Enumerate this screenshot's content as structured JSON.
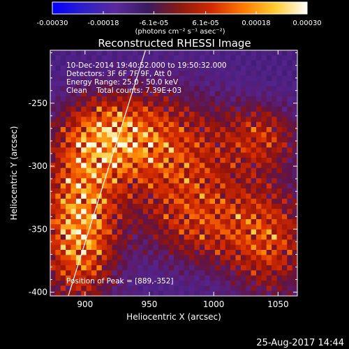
{
  "colorbar": {
    "tick_labels": [
      "-0.00030",
      "-0.00018",
      "-6.1e-05",
      "6.1e-05",
      "0.00018",
      "0.00030"
    ],
    "tick_values": [
      -0.0003,
      -0.00018,
      -6.1e-05,
      6.1e-05,
      0.00018,
      0.0003
    ],
    "range": [
      -0.0003,
      0.0003
    ],
    "unit_label": "(photons cm⁻² s⁻¹ asec⁻²)",
    "colors": [
      "#0000ff",
      "#3020c8",
      "#5a2a9a",
      "#3a1a60",
      "#8a1a10",
      "#d22a00",
      "#ff7a00",
      "#ffcc30",
      "#ffffff"
    ]
  },
  "chart_data": {
    "type": "heatmap",
    "title": "Reconstructed RHESSI Image",
    "xlabel": "Heliocentric X (arcsec)",
    "ylabel": "Heliocentric Y (arcsec)",
    "xlim": [
      873,
      1065
    ],
    "ylim": [
      -403,
      -208
    ],
    "xticks": [
      900,
      950,
      1000,
      1050
    ],
    "xtick_labels": [
      "900",
      "950",
      "1000",
      "1050"
    ],
    "yticks": [
      -400,
      -350,
      -300,
      -250
    ],
    "ytick_labels": [
      "-400",
      "-350",
      "-300",
      "-250"
    ],
    "limb_line": {
      "x": [
        887,
        947
      ],
      "y": [
        -403,
        -208
      ]
    },
    "annotations": [
      "10-Dec-2014 19:40:52.000 to 19:50:32.000",
      "Detectors: 3F 6F 7F 9F, Att 0",
      "Energy Range: 25.0 - 50.0 keV",
      "Clean    Total counts: 7.39E+03"
    ],
    "peak_label": "Position of Peak = [889,-352]",
    "peak": [
      889,
      -352
    ],
    "emission_sources": [
      {
        "x": 895,
        "y": -350,
        "sx": 22,
        "sy": 45,
        "amp": 1.05
      },
      {
        "x": 920,
        "y": -275,
        "sx": 30,
        "sy": 25,
        "amp": 0.8
      },
      {
        "x": 975,
        "y": -295,
        "sx": 35,
        "sy": 40,
        "amp": 0.65
      },
      {
        "x": 1045,
        "y": -360,
        "sx": 25,
        "sy": 35,
        "amp": 0.7
      },
      {
        "x": 1040,
        "y": -275,
        "sx": 22,
        "sy": 20,
        "amp": 0.55
      },
      {
        "x": 990,
        "y": -350,
        "sx": 30,
        "sy": 25,
        "amp": 0.45
      }
    ]
  },
  "footer": {
    "date": "25-Aug-2017 14:44"
  }
}
